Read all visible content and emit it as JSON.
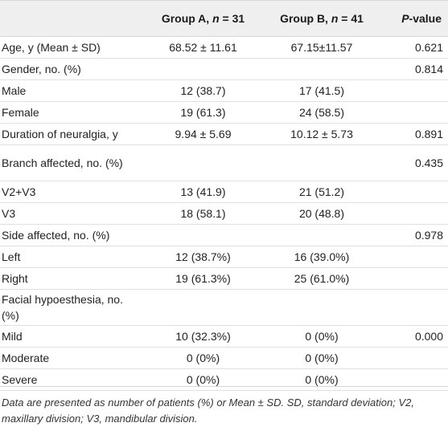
{
  "header": {
    "col_label": "",
    "group_a_prefix": "Group A, ",
    "group_a_n": "n",
    "group_a_suffix": " = 31",
    "group_b_prefix": "Group B, ",
    "group_b_n": "n",
    "group_b_suffix": " = 41",
    "p_italic": "P",
    "p_suffix": "-value"
  },
  "rows": [
    {
      "label": "Age, y (Mean ± SD)",
      "a": "68.52 ± 11.61",
      "b": "67.15±11.57",
      "p": "0.621"
    },
    {
      "label": "Gender, no. (%)",
      "a": "",
      "b": "",
      "p": "0.814"
    },
    {
      "label": "Male",
      "a": "12 (38.7)",
      "b": "17 (41.5)",
      "p": ""
    },
    {
      "label": "Female",
      "a": "19 (61.3)",
      "b": "24 (58.5)",
      "p": ""
    },
    {
      "label": "Duration of neuralgia, y",
      "a": "9.94 ± 5.69",
      "b": "10.12 ± 5.73",
      "p": "0.891"
    },
    {
      "label": "Branch affected, no. (%)",
      "a": "",
      "b": "",
      "p": "0.435"
    },
    {
      "label": "V2+V3",
      "a": "13 (41.9)",
      "b": "21 (51.2)",
      "p": ""
    },
    {
      "label": "V3",
      "a": "18 (58.1)",
      "b": "20 (48.8)",
      "p": ""
    },
    {
      "label": "Side affected, no. (%)",
      "a": "",
      "b": "",
      "p": "0.978"
    },
    {
      "label": "Left",
      "a": "12 (38.7%)",
      "b": "16 (39.0%)",
      "p": ""
    },
    {
      "label": "Right",
      "a": "19 (61.3%)",
      "b": "25 (61.0%)",
      "p": ""
    },
    {
      "label": "Facial hypoesthesia, no. (%)",
      "a": "",
      "b": "",
      "p": ""
    },
    {
      "label": "Mild",
      "a": "10 (32.3%)",
      "b": "0 (0%)",
      "p": "0.000"
    },
    {
      "label": "Moderate",
      "a": "0 (0%)",
      "b": "0 (0%)",
      "p": ""
    },
    {
      "label": "Severe",
      "a": "0 (0%)",
      "b": "0 (0%)",
      "p": ""
    }
  ],
  "footnote": "Data are presented as number of patients (%) or Mean ± SD. SD, standard deviation; V2, maxillary division; V3, mandibular division."
}
